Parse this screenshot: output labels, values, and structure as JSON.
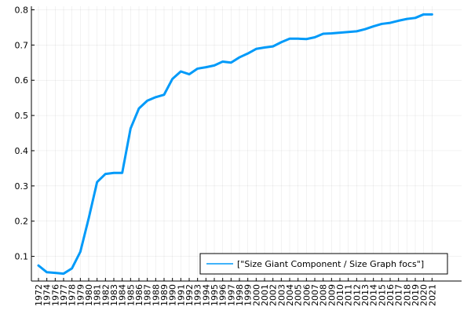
{
  "chart_data": {
    "type": "line",
    "title": "",
    "xlabel": "",
    "ylabel": "",
    "x": [
      "1972",
      "1974",
      "1976",
      "1977",
      "1978",
      "1979",
      "1980",
      "1981",
      "1982",
      "1983",
      "1984",
      "1985",
      "1986",
      "1987",
      "1988",
      "1989",
      "1990",
      "1991",
      "1992",
      "1993",
      "1994",
      "1995",
      "1996",
      "1997",
      "1998",
      "1999",
      "2000",
      "2001",
      "2002",
      "2003",
      "2004",
      "2005",
      "2006",
      "2007",
      "2008",
      "2009",
      "2010",
      "2011",
      "2012",
      "2013",
      "2014",
      "2015",
      "2016",
      "2017",
      "2018",
      "2019",
      "2020",
      "2021"
    ],
    "ylim": [
      0.03,
      0.81
    ],
    "yticks": [
      0.1,
      0.2,
      0.3,
      0.4,
      0.5,
      0.6,
      0.7,
      0.8
    ],
    "ytick_labels": [
      "0.1",
      "0.2",
      "0.3",
      "0.4",
      "0.5",
      "0.6",
      "0.7",
      "0.8"
    ],
    "grid": true,
    "legend_position": "bottom-right",
    "series": [
      {
        "name": "[\"Size Giant Component / Size Graph focs\"]",
        "color": "#009af9",
        "values": [
          0.074,
          0.055,
          0.053,
          0.051,
          0.066,
          0.113,
          0.208,
          0.311,
          0.334,
          0.337,
          0.337,
          0.463,
          0.52,
          0.542,
          0.552,
          0.559,
          0.604,
          0.625,
          0.617,
          0.633,
          0.637,
          0.642,
          0.653,
          0.65,
          0.665,
          0.676,
          0.689,
          0.693,
          0.696,
          0.708,
          0.718,
          0.718,
          0.717,
          0.722,
          0.732,
          0.733,
          0.735,
          0.737,
          0.739,
          0.745,
          0.753,
          0.76,
          0.763,
          0.769,
          0.774,
          0.777,
          0.787,
          0.787
        ]
      }
    ]
  }
}
